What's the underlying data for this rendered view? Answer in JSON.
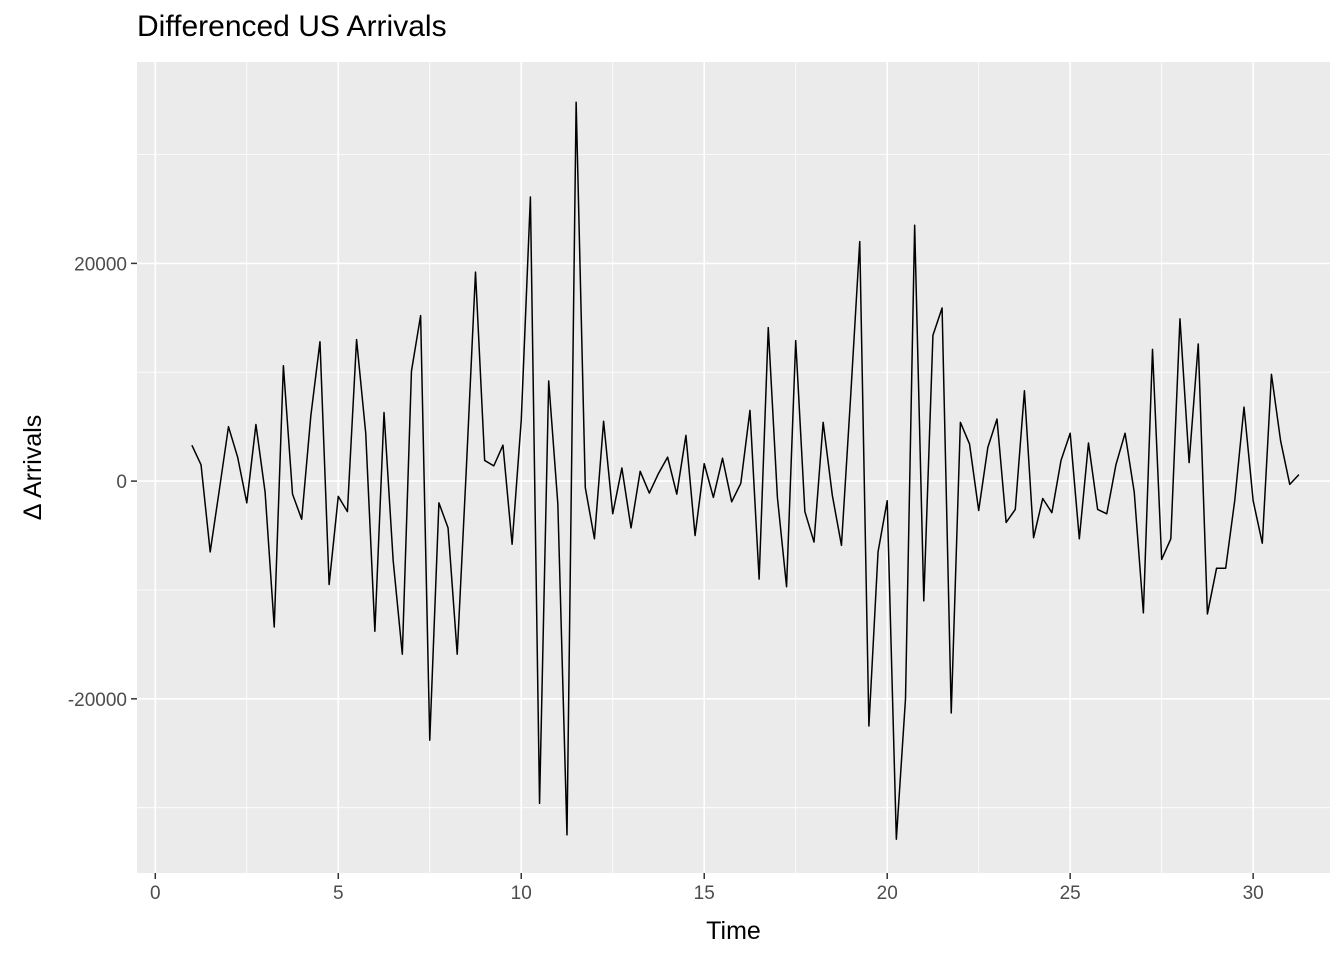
{
  "chart_data": {
    "type": "line",
    "title": "Differenced US Arrivals",
    "xlabel": "Time",
    "ylabel": "Δ Arrivals",
    "xlim": [
      -0.5,
      32.1
    ],
    "ylim": [
      -36000,
      38500
    ],
    "xticks": [
      0,
      5,
      10,
      15,
      20,
      25,
      30
    ],
    "yticks": [
      -20000,
      0,
      20000
    ],
    "grid": true,
    "legend": "none",
    "colors": {
      "panel": "#ebebeb",
      "grid": "#ffffff",
      "line": "#000000"
    },
    "series": [
      {
        "x": [
          1,
          1.25,
          1.5,
          1.75,
          2,
          2.25,
          2.5,
          2.75,
          3,
          3.25,
          3.5,
          3.75,
          4,
          4.25,
          4.5,
          4.75,
          5,
          5.25,
          5.5,
          5.75,
          6,
          6.25,
          6.5,
          6.75,
          7,
          7.25,
          7.5,
          7.75,
          8,
          8.25,
          8.5,
          8.75,
          9,
          9.25,
          9.5,
          9.75,
          10,
          10.25,
          10.5,
          10.75,
          11,
          11.25,
          11.5,
          11.75,
          12,
          12.25,
          12.5,
          12.75,
          13,
          13.25,
          13.5,
          13.75,
          14,
          14.25,
          14.5,
          14.75,
          15,
          15.25,
          15.5,
          15.75,
          16,
          16.25,
          16.5,
          16.75,
          17,
          17.25,
          17.5,
          17.75,
          18,
          18.25,
          18.5,
          18.75,
          19,
          19.25,
          19.5,
          19.75,
          20,
          20.25,
          20.5,
          20.75,
          21,
          21.25,
          21.5,
          21.75,
          22,
          22.25,
          22.5,
          22.75,
          23,
          23.25,
          23.5,
          23.75,
          24,
          24.25,
          24.5,
          24.75,
          25,
          25.25,
          25.5,
          25.75,
          26,
          26.25,
          26.5,
          26.75,
          27,
          27.25,
          27.5,
          27.75,
          28,
          28.25,
          28.5,
          28.75,
          29,
          29.25,
          29.5,
          29.75,
          30,
          30.25,
          30.5,
          30.75,
          31,
          31.25
        ],
        "y": [
          3300,
          1500,
          -6500,
          -800,
          5000,
          2200,
          -2000,
          5200,
          -1000,
          -13400,
          10600,
          -1200,
          -3500,
          6000,
          12800,
          -9500,
          -1400,
          -2800,
          13000,
          4400,
          -13800,
          6300,
          -7300,
          -15900,
          10100,
          15200,
          -23800,
          -2000,
          -4300,
          -15900,
          1200,
          19200,
          1900,
          1400,
          3300,
          -5800,
          5600,
          26100,
          -29600,
          9200,
          -2100,
          -32500,
          34800,
          -600,
          -5300,
          5500,
          -3000,
          1200,
          -4300,
          900,
          -1100,
          700,
          2200,
          -1200,
          4200,
          -5000,
          1600,
          -1500,
          2100,
          -1900,
          -200,
          6500,
          -9000,
          14100,
          -1500,
          -9700,
          12900,
          -2800,
          -5600,
          5400,
          -1300,
          -5900,
          7700,
          22000,
          -22500,
          -6500,
          -1800,
          -32900,
          -20000,
          23500,
          -11000,
          13400,
          15900,
          -21300,
          5400,
          3400,
          -2700,
          3100,
          5700,
          -3800,
          -2600,
          8300,
          -5200,
          -1600,
          -2900,
          1900,
          4400,
          -5300,
          3500,
          -2600,
          -3000,
          1500,
          4400,
          -1000,
          -12100,
          12100,
          -7200,
          -5300,
          14900,
          1700,
          12600,
          -12200,
          -8000,
          -8000,
          -1700,
          6800,
          -1800,
          -5700,
          9800,
          3700,
          -300,
          600
        ]
      }
    ]
  }
}
